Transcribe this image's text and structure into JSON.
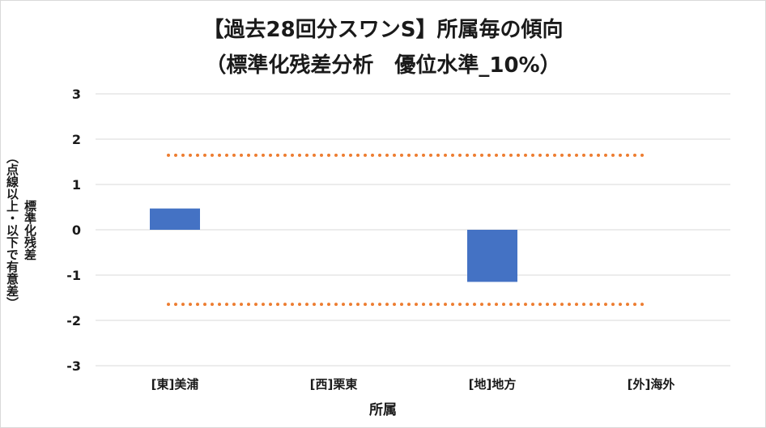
{
  "title_line1": "【過去28回分スワンS】所属毎の傾向",
  "title_line2": "（標準化残差分析　優位水準_10%）",
  "chart_data": {
    "type": "bar",
    "title": "【過去28回分スワンS】所属毎の傾向 （標準化残差分析　優位水準_10%）",
    "xlabel": "所属",
    "ylabel_lines": [
      "標準化残差",
      "（点線以上・以下で有意差）"
    ],
    "categories": [
      "[東]美浦",
      "[西]栗東",
      "[地]地方",
      "[外]海外"
    ],
    "values": [
      0.47,
      0,
      -1.15,
      0
    ],
    "ylim": [
      -3,
      3
    ],
    "yticks": [
      3,
      2,
      1,
      0,
      -1,
      -2,
      -3
    ],
    "threshold_lines": [
      1.645,
      -1.645
    ],
    "bar_color": "#4472c4",
    "threshold_color": "#ed7d31",
    "grid": true
  }
}
